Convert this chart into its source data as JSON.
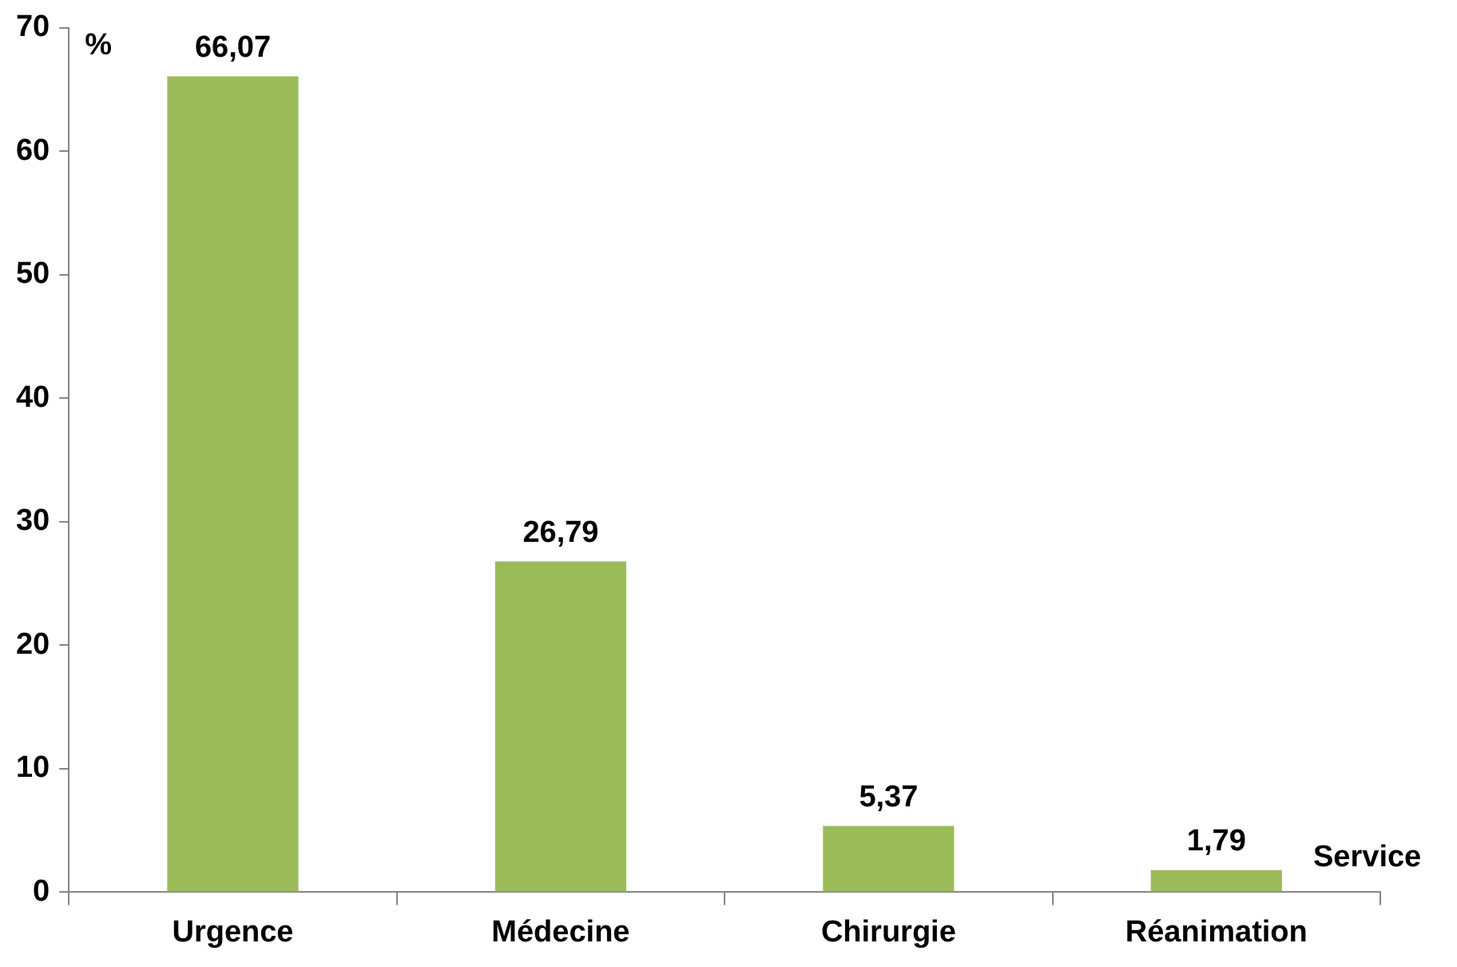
{
  "chart_data": {
    "type": "bar",
    "xlabel": "Service",
    "ylabel": "%",
    "categories": [
      "Urgence",
      "Médecine",
      "Chirurgie",
      "Réanimation"
    ],
    "values": [
      66.07,
      26.79,
      5.37,
      1.79
    ],
    "value_labels": [
      "66,07",
      "26,79",
      "5,37",
      "1,79"
    ],
    "color": "#9bbb59",
    "ylim": [
      0,
      70
    ],
    "yticks": [
      0,
      10,
      20,
      30,
      40,
      50,
      60,
      70
    ],
    "grid": false,
    "legend": false
  }
}
